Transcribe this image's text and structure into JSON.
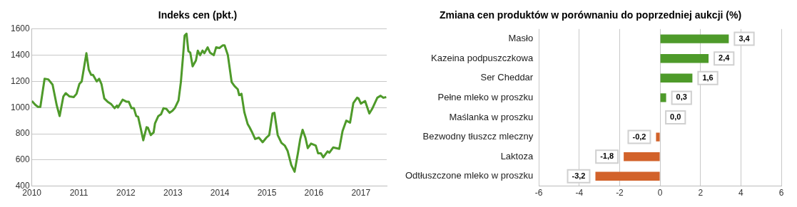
{
  "chart_data": [
    {
      "type": "line",
      "title": "Indeks cen (pkt.)",
      "color": "#4e9a2a",
      "grid": "y",
      "xlim": [
        2010,
        2017.55
      ],
      "xticks": [
        2010,
        2011,
        2012,
        2013,
        2014,
        2015,
        2016,
        2017
      ],
      "ylim": [
        400,
        1600
      ],
      "yticks": [
        400,
        600,
        800,
        1000,
        1200,
        1400,
        1600
      ],
      "x": [
        2010.0,
        2010.075,
        2010.13,
        2010.18,
        2010.27,
        2010.35,
        2010.44,
        2010.53,
        2010.59,
        2010.67,
        2010.72,
        2010.8,
        2010.89,
        2010.95,
        2011.01,
        2011.06,
        2011.16,
        2011.21,
        2011.26,
        2011.3,
        2011.38,
        2011.43,
        2011.48,
        2011.54,
        2011.61,
        2011.69,
        2011.76,
        2011.81,
        2011.83,
        2011.93,
        2012.01,
        2012.06,
        2012.12,
        2012.17,
        2012.22,
        2012.26,
        2012.31,
        2012.37,
        2012.44,
        2012.47,
        2012.53,
        2012.59,
        2012.62,
        2012.69,
        2012.75,
        2012.8,
        2012.86,
        2012.93,
        2012.99,
        2013.04,
        2013.12,
        2013.17,
        2013.22,
        2013.25,
        2013.29,
        2013.33,
        2013.37,
        2013.42,
        2013.49,
        2013.53,
        2013.58,
        2013.63,
        2013.67,
        2013.74,
        2013.79,
        2013.87,
        2013.92,
        2013.99,
        2014.06,
        2014.1,
        2014.17,
        2014.25,
        2014.31,
        2014.38,
        2014.41,
        2014.46,
        2014.52,
        2014.59,
        2014.63,
        2014.68,
        2014.75,
        2014.83,
        2014.91,
        2014.99,
        2015.05,
        2015.12,
        2015.16,
        2015.23,
        2015.31,
        2015.38,
        2015.44,
        2015.52,
        2015.59,
        2015.66,
        2015.71,
        2015.76,
        2015.82,
        2015.87,
        2015.94,
        2016.04,
        2016.09,
        2016.15,
        2016.2,
        2016.29,
        2016.33,
        2016.41,
        2016.54,
        2016.61,
        2016.69,
        2016.77,
        2016.84,
        2016.92,
        2016.95,
        2017.0,
        2017.09,
        2017.18,
        2017.24,
        2017.35,
        2017.42,
        2017.48,
        2017.54
      ],
      "values": [
        1050,
        1020,
        1005,
        1005,
        1220,
        1215,
        1175,
        1015,
        935,
        1085,
        1110,
        1085,
        1080,
        1105,
        1180,
        1200,
        1415,
        1290,
        1250,
        1250,
        1200,
        1220,
        1180,
        1070,
        1045,
        1025,
        995,
        1015,
        1000,
        1060,
        1045,
        1045,
        995,
        995,
        935,
        930,
        850,
        750,
        850,
        845,
        790,
        810,
        880,
        935,
        950,
        995,
        990,
        960,
        975,
        995,
        1055,
        1195,
        1410,
        1550,
        1565,
        1430,
        1420,
        1315,
        1360,
        1435,
        1400,
        1435,
        1415,
        1460,
        1420,
        1400,
        1460,
        1455,
        1475,
        1475,
        1400,
        1195,
        1165,
        1140,
        1095,
        1105,
        965,
        875,
        850,
        815,
        760,
        770,
        735,
        770,
        790,
        955,
        960,
        790,
        730,
        710,
        670,
        560,
        510,
        650,
        760,
        830,
        770,
        690,
        725,
        710,
        650,
        650,
        620,
        665,
        655,
        695,
        685,
        820,
        900,
        885,
        1035,
        1075,
        1070,
        1030,
        1050,
        955,
        990,
        1075,
        1090,
        1075,
        1080
      ]
    },
    {
      "type": "bar",
      "orientation": "horizontal",
      "title": "Zmiana cen produktów w porównaniu do poprzedniej aukcji (%)",
      "grid": "x",
      "xlim": [
        -6,
        6
      ],
      "xticks": [
        -6,
        -4,
        -2,
        0,
        2,
        4,
        6
      ],
      "categories": [
        "Masło",
        "Kazeina podpuszczkowa",
        "Ser Cheddar",
        "Pełne mleko w proszku",
        "Maślanka w proszku",
        "Bezwodny tłuszcz mleczny",
        "Laktoza",
        "Odtłuszczone mleko w proszku"
      ],
      "values": [
        3.4,
        2.4,
        1.6,
        0.3,
        0.0,
        -0.2,
        -1.8,
        -3.2
      ],
      "colors": [
        "#4e9a2a",
        "#4e9a2a",
        "#4e9a2a",
        "#4e9a2a",
        "#4e9a2a",
        "#d2622a",
        "#d2622a",
        "#d2622a"
      ],
      "value_labels": [
        "3,4",
        "2,4",
        "1,6",
        "0,3",
        "0,0",
        "-0,2",
        "-1,8",
        "-3,2"
      ]
    }
  ]
}
